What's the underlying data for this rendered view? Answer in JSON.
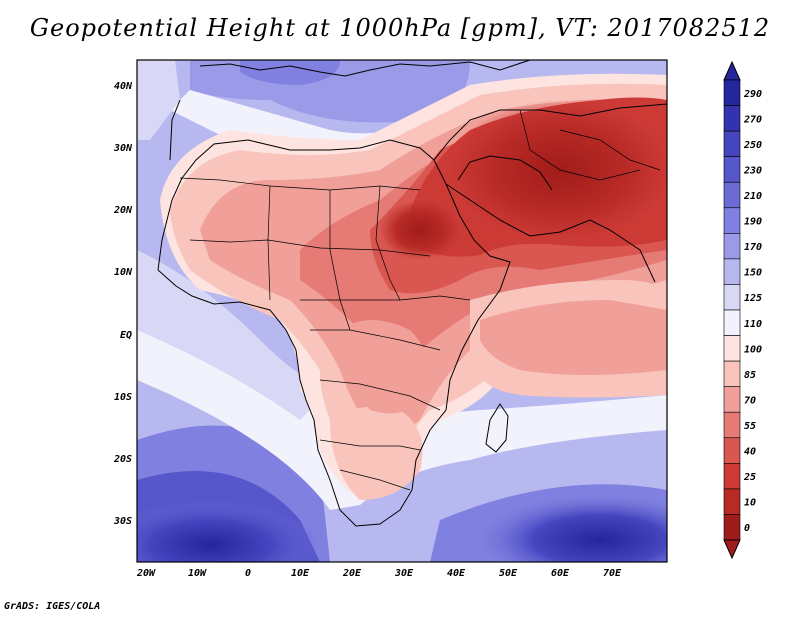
{
  "title": "Geopotential Height at 1000hPa [gpm], VT: 2017082512",
  "footer": "GrADS: IGES/COLA",
  "map": {
    "lat_labels": [
      "40N",
      "30N",
      "20N",
      "10N",
      "EQ",
      "10S",
      "20S",
      "30S"
    ],
    "lon_labels": [
      "20W",
      "10W",
      "0",
      "10E",
      "20E",
      "30E",
      "40E",
      "50E",
      "60E",
      "70E"
    ]
  },
  "colorbar": {
    "levels": [
      "290",
      "270",
      "250",
      "230",
      "210",
      "190",
      "170",
      "150",
      "125",
      "110",
      "100",
      "85",
      "70",
      "55",
      "40",
      "25",
      "10",
      "0"
    ],
    "colors": [
      "#25259c",
      "#3333b0",
      "#4545c0",
      "#5757cc",
      "#6b6bd6",
      "#8080e0",
      "#9a9ae8",
      "#b8b8f0",
      "#d8d8f6",
      "#f2f2fc",
      "#fde4e0",
      "#f8c4bc",
      "#f0a098",
      "#e67a74",
      "#da5650",
      "#cc3a36",
      "#b82a26",
      "#a01c1a"
    ]
  }
}
